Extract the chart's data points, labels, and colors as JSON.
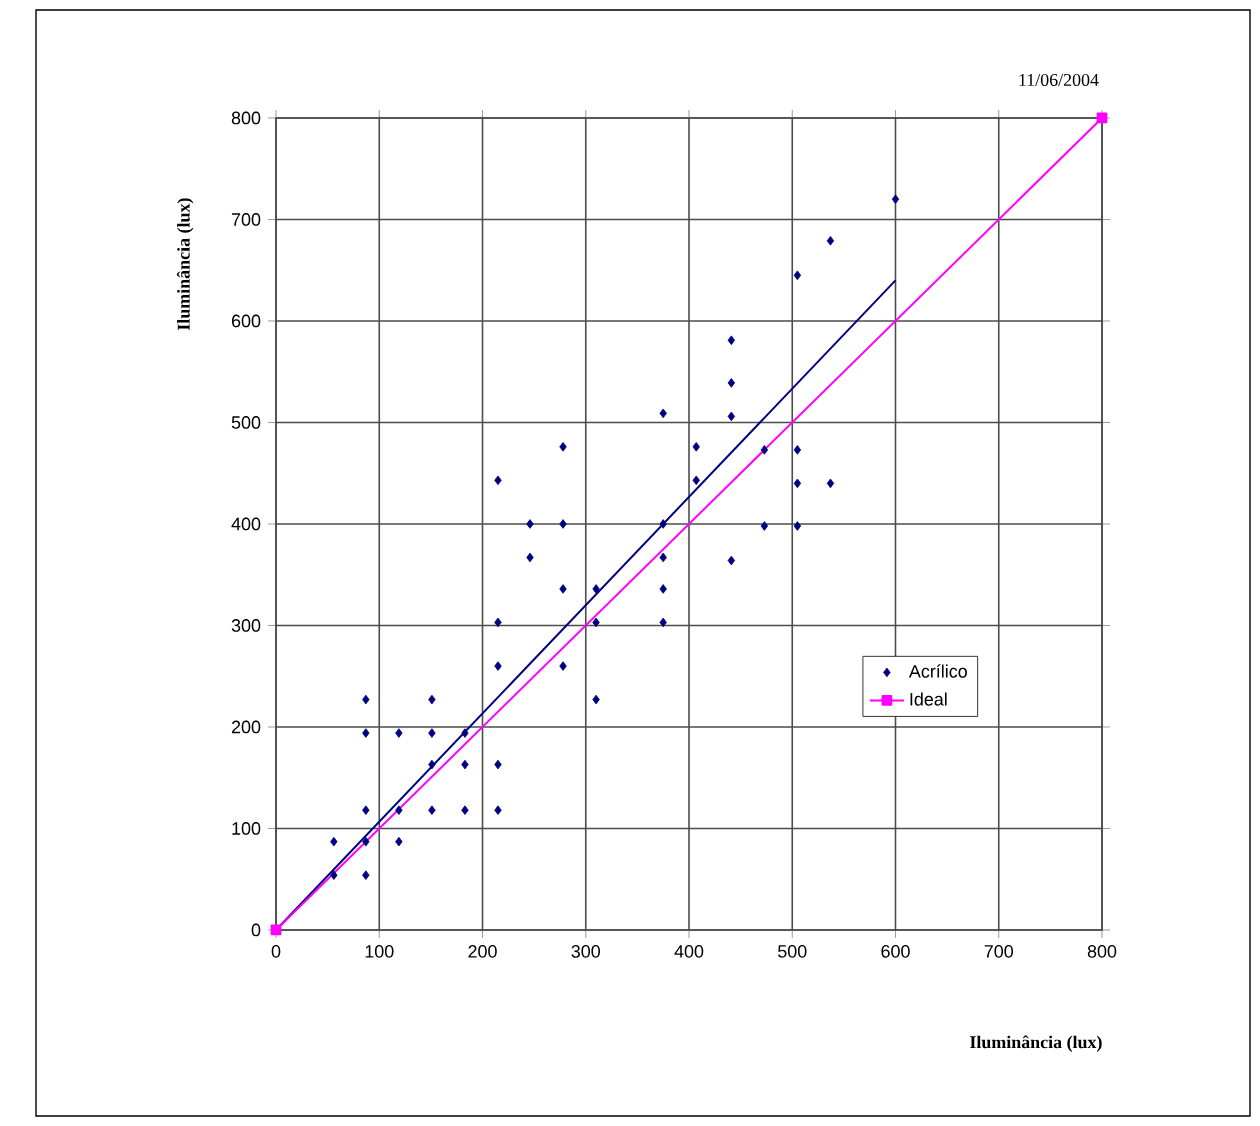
{
  "chart_data": {
    "type": "scatter",
    "xlabel": "Iluminância (lux)",
    "ylabel": "Iluminância (lux)",
    "annotations": [
      "11/06/2004"
    ],
    "xlim": [
      0,
      800
    ],
    "ylim": [
      0,
      800
    ],
    "xticks": [
      0,
      100,
      200,
      300,
      400,
      500,
      600,
      700,
      800
    ],
    "yticks": [
      0,
      100,
      200,
      300,
      400,
      500,
      600,
      700,
      800
    ],
    "grid": true,
    "legend": "right",
    "series": [
      {
        "name": "Acrílico",
        "marker": "diamond",
        "color": "#000080",
        "x": [
          56,
          56,
          87,
          87,
          87,
          87,
          87,
          119,
          119,
          119,
          151,
          151,
          151,
          151,
          183,
          183,
          183,
          215,
          215,
          215,
          215,
          215,
          246,
          246,
          278,
          278,
          278,
          278,
          310,
          310,
          310,
          375,
          375,
          375,
          375,
          375,
          407,
          407,
          441,
          441,
          441,
          441,
          473,
          473,
          505,
          505,
          505,
          505,
          537,
          537,
          600
        ],
        "values": [
          87,
          54,
          227,
          194,
          118,
          87,
          54,
          194,
          118,
          87,
          227,
          194,
          163,
          118,
          194,
          163,
          118,
          443,
          303,
          260,
          163,
          118,
          400,
          367,
          476,
          400,
          336,
          260,
          336,
          303,
          227,
          509,
          400,
          367,
          336,
          303,
          476,
          443,
          581,
          539,
          506,
          364,
          473,
          398,
          645,
          473,
          440,
          398,
          679,
          440,
          720
        ]
      },
      {
        "type": "line",
        "marker": "none",
        "color": "#000080",
        "x": [
          0,
          600
        ],
        "values": [
          0,
          640
        ]
      },
      {
        "name": "Ideal",
        "type": "line",
        "marker": "square",
        "color": "#ff00ff",
        "x": [
          0,
          800
        ],
        "values": [
          0,
          800
        ]
      }
    ]
  }
}
